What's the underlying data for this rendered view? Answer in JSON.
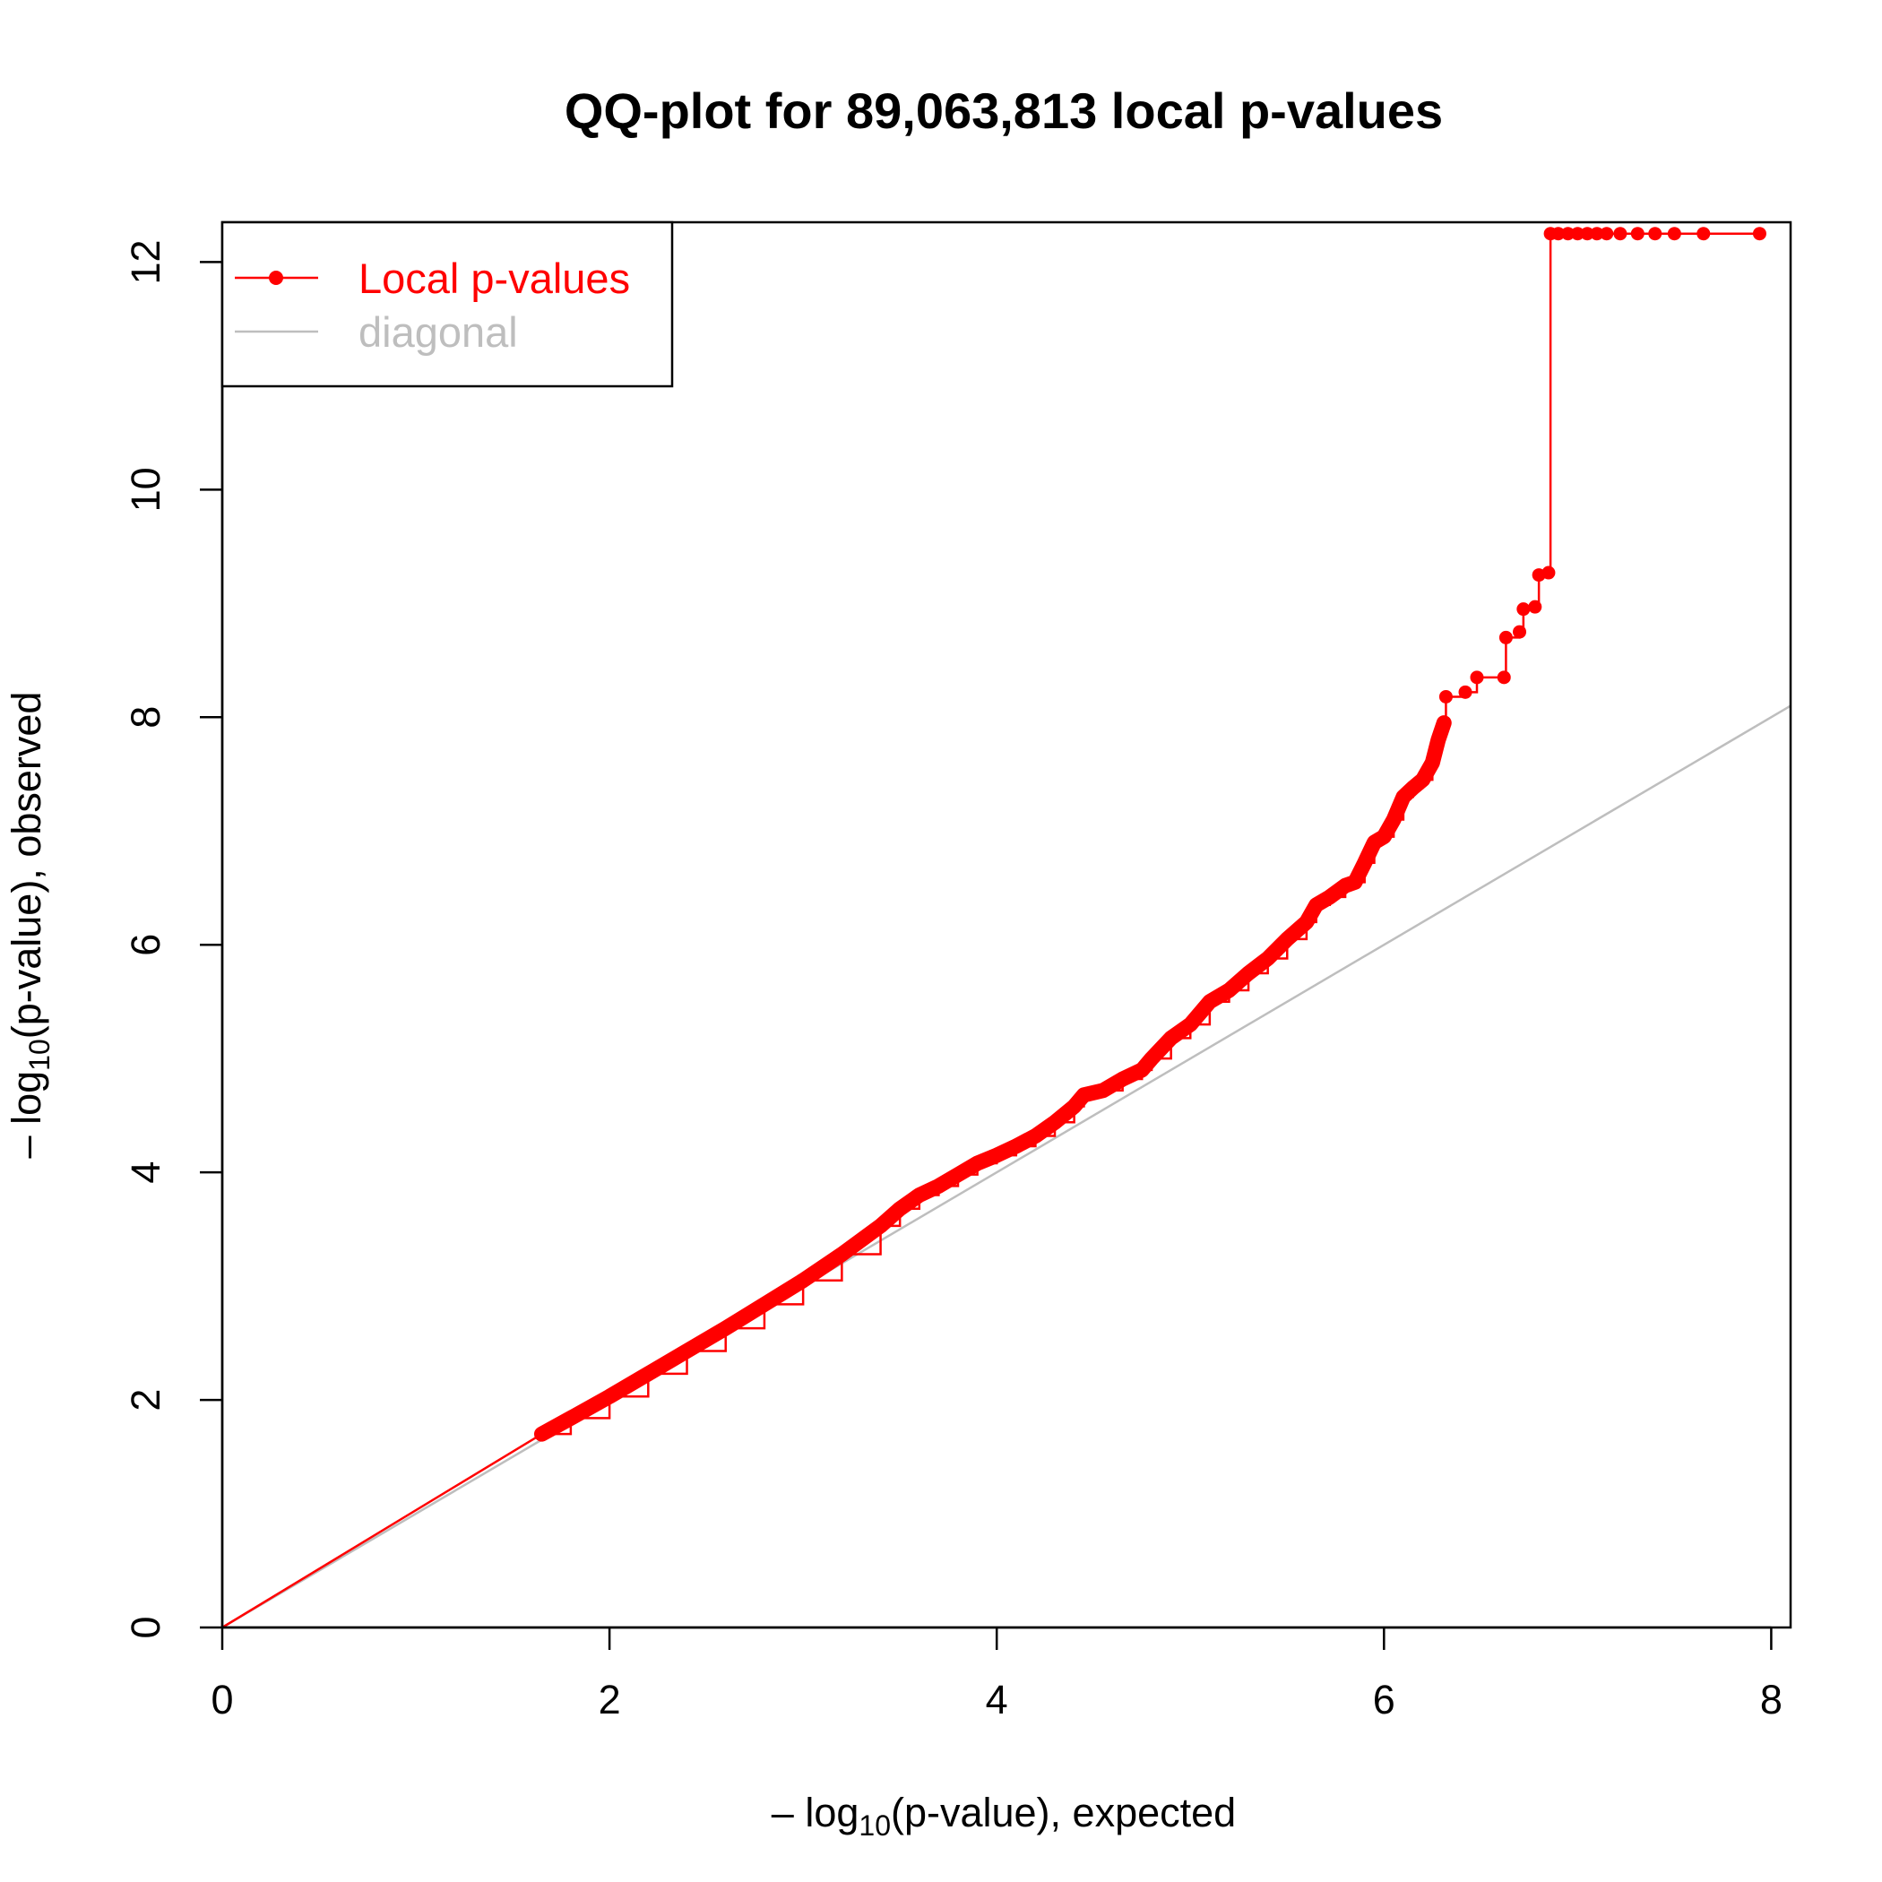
{
  "chart_data": {
    "type": "scatter",
    "title": "QQ-plot for 89,063,813 local p-values",
    "xlabel": {
      "prefix": "– log",
      "sub": "10",
      "suffix": "(p-value), expected"
    },
    "ylabel": {
      "prefix": "– log",
      "sub": "10",
      "suffix": "(p-value), observed"
    },
    "xlim": [
      0,
      8.1
    ],
    "ylim": [
      0,
      12.35
    ],
    "xticks": [
      0,
      2,
      4,
      6,
      8
    ],
    "yticks": [
      0,
      2,
      4,
      6,
      8,
      10,
      12
    ],
    "xtick_labels": [
      "0",
      "2",
      "4",
      "6",
      "8"
    ],
    "ytick_labels": [
      "0",
      "2",
      "4",
      "6",
      "8",
      "10",
      "12"
    ],
    "legend": {
      "position": "top-left",
      "entries": [
        {
          "label": "Local p-values",
          "color": "#ff0000",
          "style": "line-point"
        },
        {
          "label": "diagonal",
          "color": "#bebebe",
          "style": "line"
        }
      ]
    },
    "series": [
      {
        "name": "Local p-values",
        "color": "#ff0000",
        "points": [
          [
            1.65,
            1.7
          ],
          [
            1.8,
            1.84
          ],
          [
            2.0,
            2.03
          ],
          [
            2.2,
            2.23
          ],
          [
            2.4,
            2.43
          ],
          [
            2.6,
            2.63
          ],
          [
            2.8,
            2.84
          ],
          [
            3.0,
            3.05
          ],
          [
            3.2,
            3.28
          ],
          [
            3.4,
            3.53
          ],
          [
            3.5,
            3.68
          ],
          [
            3.6,
            3.8
          ],
          [
            3.7,
            3.88
          ],
          [
            3.8,
            3.98
          ],
          [
            3.9,
            4.08
          ],
          [
            4.0,
            4.15
          ],
          [
            4.1,
            4.23
          ],
          [
            4.2,
            4.32
          ],
          [
            4.3,
            4.44
          ],
          [
            4.4,
            4.58
          ],
          [
            4.45,
            4.68
          ],
          [
            4.55,
            4.72
          ],
          [
            4.65,
            4.82
          ],
          [
            4.75,
            4.9
          ],
          [
            4.8,
            5.0
          ],
          [
            4.9,
            5.18
          ],
          [
            5.0,
            5.3
          ],
          [
            5.1,
            5.5
          ],
          [
            5.2,
            5.6
          ],
          [
            5.3,
            5.75
          ],
          [
            5.4,
            5.88
          ],
          [
            5.5,
            6.05
          ],
          [
            5.6,
            6.2
          ],
          [
            5.65,
            6.35
          ],
          [
            5.72,
            6.42
          ],
          [
            5.8,
            6.52
          ],
          [
            5.85,
            6.55
          ],
          [
            5.9,
            6.72
          ],
          [
            5.95,
            6.9
          ],
          [
            6.0,
            6.95
          ],
          [
            6.05,
            7.1
          ],
          [
            6.1,
            7.3
          ],
          [
            6.15,
            7.38
          ],
          [
            6.2,
            7.45
          ],
          [
            6.25,
            7.6
          ],
          [
            6.28,
            7.8
          ],
          [
            6.31,
            7.95
          ],
          [
            6.32,
            8.18
          ],
          [
            6.42,
            8.22
          ],
          [
            6.48,
            8.35
          ],
          [
            6.62,
            8.35
          ],
          [
            6.63,
            8.7
          ],
          [
            6.7,
            8.75
          ],
          [
            6.72,
            8.95
          ],
          [
            6.78,
            8.97
          ],
          [
            6.8,
            9.25
          ],
          [
            6.85,
            9.27
          ],
          [
            6.86,
            12.25
          ],
          [
            6.9,
            12.25
          ],
          [
            6.95,
            12.25
          ],
          [
            7.0,
            12.25
          ],
          [
            7.05,
            12.25
          ],
          [
            7.1,
            12.25
          ],
          [
            7.15,
            12.25
          ],
          [
            7.22,
            12.25
          ],
          [
            7.31,
            12.25
          ],
          [
            7.4,
            12.25
          ],
          [
            7.5,
            12.25
          ],
          [
            7.65,
            12.25
          ],
          [
            7.94,
            12.25
          ]
        ]
      },
      {
        "name": "diagonal",
        "color": "#bebebe",
        "points": [
          [
            0,
            0
          ],
          [
            8.1,
            8.1
          ]
        ]
      }
    ]
  }
}
